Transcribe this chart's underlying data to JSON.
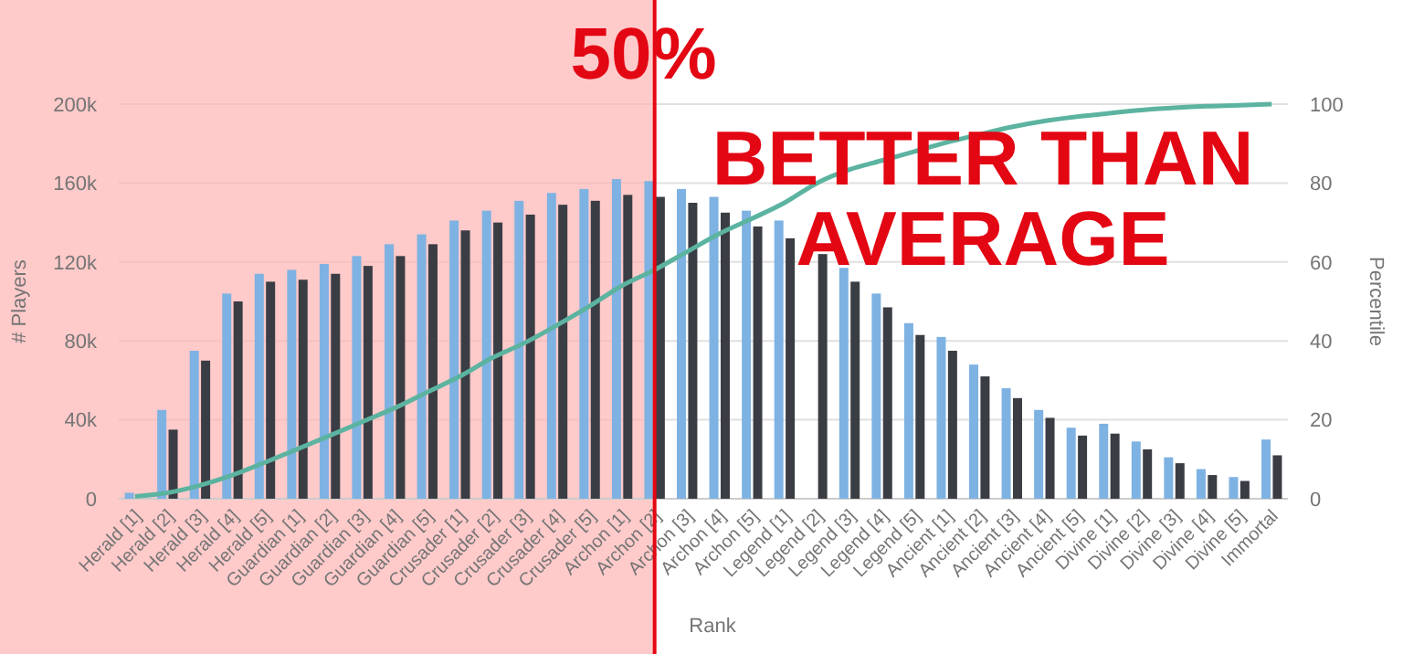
{
  "chart_data": {
    "type": "bar",
    "categories": [
      "Herald [1]",
      "Herald [2]",
      "Herald [3]",
      "Herald [4]",
      "Herald [5]",
      "Guardian [1]",
      "Guardian [2]",
      "Guardian [3]",
      "Guardian [4]",
      "Guardian [5]",
      "Crusader [1]",
      "Crusader [2]",
      "Crusader [3]",
      "Crusader [4]",
      "Crusader [5]",
      "Archon [1]",
      "Archon [2]",
      "Archon [3]",
      "Archon [4]",
      "Archon [5]",
      "Legend [1]",
      "Legend [2]",
      "Legend [3]",
      "Legend [4]",
      "Legend [5]",
      "Ancient [1]",
      "Ancient [2]",
      "Ancient [3]",
      "Ancient [4]",
      "Ancient [5]",
      "Divine [1]",
      "Divine [2]",
      "Divine [3]",
      "Divine [4]",
      "Divine [5]",
      "Immortal"
    ],
    "series": [
      {
        "color": "#7eb2e2",
        "values": [
          3000,
          45000,
          75000,
          104000,
          114000,
          116000,
          119000,
          123000,
          129000,
          134000,
          141000,
          146000,
          151000,
          155000,
          157000,
          162000,
          161000,
          157000,
          153000,
          146000,
          141000,
          null,
          117000,
          104000,
          89000,
          82000,
          68000,
          56000,
          45000,
          36000,
          38000,
          29000,
          21000,
          15000,
          11000,
          30000
        ]
      },
      {
        "color": "#3b3d44",
        "values": [
          null,
          35000,
          70000,
          100000,
          110000,
          111000,
          114000,
          118000,
          123000,
          129000,
          136000,
          140000,
          144000,
          149000,
          151000,
          154000,
          153000,
          150000,
          145000,
          138000,
          132000,
          124000,
          110000,
          97000,
          83000,
          75000,
          62000,
          51000,
          41000,
          32000,
          33000,
          25000,
          18000,
          12000,
          9000,
          22000
        ]
      },
      {
        "type": "line",
        "axis": "y2",
        "color": "#5bb3a0",
        "values": [
          0.6,
          1.5,
          3.4,
          6,
          9.2,
          12.6,
          16,
          19.5,
          23,
          27,
          31,
          35.7,
          39.5,
          44,
          48.8,
          54,
          58,
          62.6,
          67.2,
          71,
          75,
          80,
          83.4,
          85.7,
          88,
          90.3,
          92.3,
          94.2,
          95.7,
          96.8,
          97.7,
          98.5,
          99.1,
          99.5,
          99.7,
          100
        ]
      }
    ],
    "ylim": [
      0,
      200000
    ],
    "yticks": [
      0,
      {
        "value": 40000,
        "label": "40k"
      },
      {
        "value": 80000,
        "label": "80k"
      },
      {
        "value": 120000,
        "label": "120k"
      },
      {
        "value": 160000,
        "label": "160k"
      },
      {
        "value": 200000,
        "label": "200k"
      }
    ],
    "y2lim": [
      0,
      100
    ],
    "y2ticks": [
      0,
      20,
      40,
      60,
      80,
      100
    ],
    "xlabel": "Rank",
    "ylabel": "# Players",
    "y2label": "Percentile",
    "grid": "y",
    "bands": [
      {
        "axis": "x",
        "from": "Herald [1]",
        "to": "Archon [2]",
        "color": "#ffb3b3"
      }
    ],
    "ref_lines": [
      {
        "axis": "x",
        "value": "Archon [2]",
        "label": "50%",
        "color": "#e30613"
      }
    ],
    "annotations": [
      "BETTER THAN AVERAGE"
    ]
  }
}
